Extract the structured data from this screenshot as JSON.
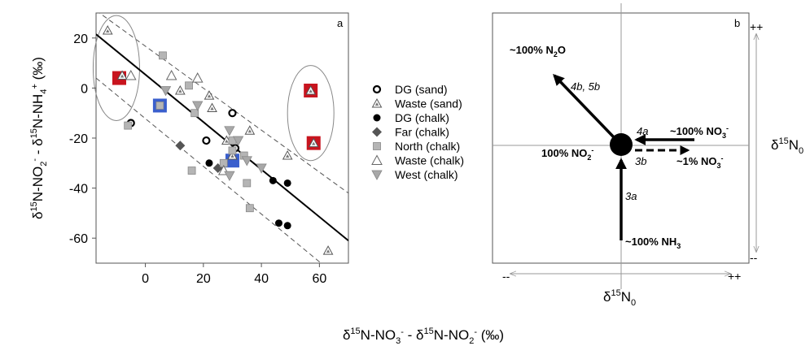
{
  "chart_data": [
    {
      "panel_letter": "a",
      "type": "scatter",
      "xlabel_parts": [
        "δ",
        "15",
        "N-NO",
        "3",
        "-",
        " - δ",
        "15",
        "N-NO",
        "2",
        "-",
        " (‰)"
      ],
      "ylabel_parts": [
        "δ",
        "15",
        "N-NO",
        "2",
        "-",
        " - δ",
        "15",
        "N-NH",
        "4",
        "+",
        " (‰)"
      ],
      "xlim": [
        -17,
        70
      ],
      "ylim": [
        -70,
        30
      ],
      "xticks": [
        0,
        20,
        40,
        60
      ],
      "yticks": [
        20,
        0,
        -20,
        -40,
        -60
      ],
      "grid": false,
      "legend_position": "right",
      "series": [
        {
          "name": "DG (sand)",
          "marker": "ring",
          "points": [
            [
              -5,
              -14
            ],
            [
              21,
              -21
            ],
            [
              30,
              -10
            ],
            [
              31,
              -24
            ]
          ]
        },
        {
          "name": "Waste (sand)",
          "marker": "triangle-up-small",
          "points": [
            [
              -13,
              23
            ],
            [
              -8,
              5
            ],
            [
              12,
              -1
            ],
            [
              22,
              -3
            ],
            [
              23,
              -8
            ],
            [
              28,
              -21
            ],
            [
              30,
              -27
            ],
            [
              36,
              -17
            ],
            [
              49,
              -27
            ],
            [
              63,
              -65
            ],
            [
              57,
              -1
            ],
            [
              58,
              -22
            ]
          ]
        },
        {
          "name": "DG (chalk)",
          "marker": "dot",
          "points": [
            [
              22,
              -30
            ],
            [
              44,
              -37
            ],
            [
              46,
              -54
            ],
            [
              49,
              -38
            ],
            [
              49,
              -55
            ]
          ]
        },
        {
          "name": "Far (chalk)",
          "marker": "diamond",
          "points": [
            [
              12,
              -23
            ],
            [
              25,
              -32
            ]
          ]
        },
        {
          "name": "North (chalk)",
          "marker": "square",
          "points": [
            [
              -6,
              -15
            ],
            [
              5,
              -7
            ],
            [
              6,
              13
            ],
            [
              15,
              1
            ],
            [
              17,
              -10
            ],
            [
              16,
              -33
            ],
            [
              27,
              -30
            ],
            [
              30,
              -25
            ],
            [
              34,
              -27
            ],
            [
              35,
              -38
            ],
            [
              36,
              -48
            ],
            [
              30,
              -21
            ]
          ]
        },
        {
          "name": "Waste (chalk)",
          "marker": "triangle-up-open",
          "points": [
            [
              -5,
              5
            ],
            [
              9,
              5
            ],
            [
              18,
              4
            ],
            [
              27,
              -33
            ]
          ]
        },
        {
          "name": "West (chalk)",
          "marker": "triangle-down",
          "points": [
            [
              7,
              -1
            ],
            [
              18,
              -7
            ],
            [
              29,
              -17
            ],
            [
              32,
              -21
            ],
            [
              35,
              -29
            ],
            [
              40,
              -32
            ],
            [
              29,
              -35
            ]
          ]
        }
      ],
      "highlights": {
        "red": [
          [
            -9,
            4
          ],
          [
            57,
            -1
          ],
          [
            58,
            -22
          ]
        ],
        "blue": [
          [
            5,
            -7
          ],
          [
            30,
            -29
          ]
        ]
      },
      "regression": {
        "x": [
          -17,
          70
        ],
        "y": [
          21.5,
          -61
        ]
      },
      "confidence_band": {
        "upper": {
          "x": [
            -17,
            70
          ],
          "y": [
            31,
            -42
          ]
        },
        "lower": {
          "x": [
            -17,
            70
          ],
          "y": [
            4,
            -79
          ]
        }
      },
      "ellipses": [
        {
          "cx": -10,
          "cy": 8,
          "rx": 8,
          "ry": 21
        },
        {
          "cx": 57,
          "cy": -10,
          "rx": 8,
          "ry": 19
        }
      ]
    },
    {
      "panel_letter": "b",
      "type": "diagram",
      "corner_labels": {
        "top_right": "++",
        "right_bottom": "--",
        "bottom_left": "--",
        "bottom_right": "++"
      },
      "axis_label_right": {
        "base": "δ",
        "sup": "15",
        "main": "N",
        "sub": "0"
      },
      "axis_label_bottom": {
        "base": "δ",
        "sup": "15",
        "main": "N",
        "sub": "0"
      },
      "arrow_labels": {
        "n2o": {
          "prefix": "~100% N",
          "sub": "2",
          "suffix": "O"
        },
        "arrow_4b5b": "4b, 5b",
        "arrow_4a": "4a",
        "no3_in": {
          "prefix": "~100% NO",
          "sub": "3",
          "sup": "-"
        },
        "no2": {
          "prefix": "100% NO",
          "sub": "2",
          "sup": "-"
        },
        "arrow_3b": "3b",
        "no3_out": {
          "prefix": "~1% NO",
          "sub": "3",
          "sup": "-"
        },
        "arrow_3a": "3a",
        "nh3": {
          "prefix": "~100% NH",
          "sub": "3"
        }
      }
    }
  ]
}
